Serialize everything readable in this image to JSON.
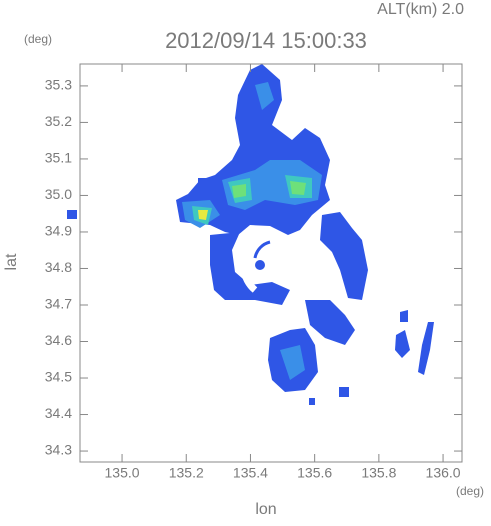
{
  "chart_data": {
    "type": "map",
    "title": "2012/09/14 15:00:33",
    "subtitle": "ALT(km)  2.0",
    "x_label": "lon",
    "y_label": "lat",
    "x_unit": "(deg)",
    "y_unit": "(deg)",
    "xlim": [
      134.869,
      136.059
    ],
    "ylim": [
      34.27,
      35.36
    ],
    "xticks": [
      {
        "value": 135.0,
        "label": "135.0"
      },
      135.2,
      135.4,
      135.6,
      135.8,
      {
        "value": 136.0,
        "label": "136.0"
      }
    ],
    "yticks": [
      34.3,
      34.4,
      34.5,
      34.6,
      34.7,
      34.8,
      34.9,
      {
        "value": 35.0,
        "label": "35.0"
      },
      35.1,
      35.2,
      35.3
    ]
  }
}
